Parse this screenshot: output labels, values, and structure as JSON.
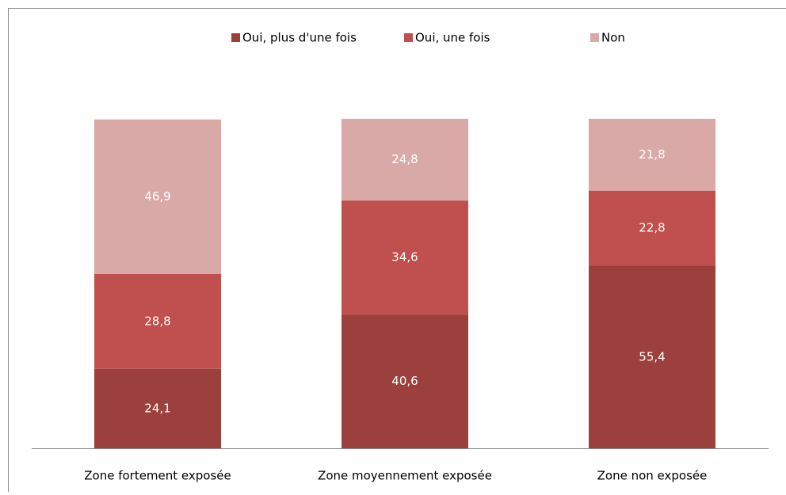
{
  "chart_data": {
    "type": "stacked_bar",
    "categories": [
      "Zone fortement exposée",
      "Zone moyennement exposée",
      "Zone non exposée"
    ],
    "series": [
      {
        "name": "Oui, plus d'une fois",
        "color": "#9c403e",
        "values": [
          24.1,
          40.6,
          55.4
        ],
        "value_labels": [
          "24,1",
          "40,6",
          "55,4"
        ]
      },
      {
        "name": "Oui, une fois",
        "color": "#c0504d",
        "values": [
          28.8,
          34.6,
          22.8
        ],
        "value_labels": [
          "28,8",
          "34,6",
          "22,8"
        ]
      },
      {
        "name": "Non",
        "color": "#d9a9a8",
        "values": [
          46.9,
          24.8,
          21.8
        ],
        "value_labels": [
          "46,9",
          "24,8",
          "21,8"
        ]
      }
    ],
    "ylim": [
      0,
      100
    ],
    "legend": "top"
  }
}
